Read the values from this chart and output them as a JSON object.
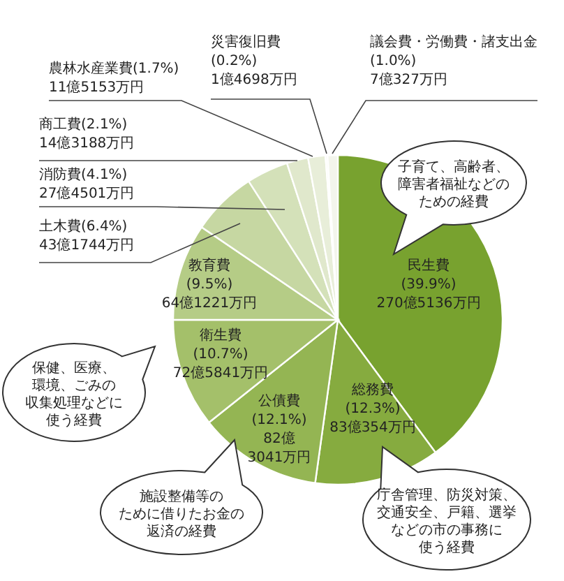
{
  "chart_data": {
    "type": "pie",
    "categories": [
      "民生費",
      "総務費",
      "公債費",
      "衛生費",
      "教育費",
      "土木費",
      "消防費",
      "商工費",
      "農林水産業費",
      "災害復旧費",
      "議会費・労働費・諸支出金"
    ],
    "values": [
      39.9,
      12.3,
      12.1,
      10.7,
      9.5,
      6.4,
      4.1,
      2.1,
      1.7,
      0.2,
      1.0
    ],
    "value_labels": [
      "(39.9%)\n270億5136万円",
      "(12.3%)\n83億354万円",
      "(12.1%)\n82億\n3041万円",
      "(10.7%)\n72億5841万円",
      "(9.5%)\n64億1221万円",
      "(6.4%)\n43億1744万円",
      "(4.1%)\n27億4501万円",
      "(2.1%)\n14億3188万円",
      "(1.7%)\n11億5153万円",
      "(0.2%)\n1億4698万円",
      "(1.0%)\n7億327万円"
    ],
    "colors": [
      "#78a22f",
      "#86ab3f",
      "#94b553",
      "#a4c06a",
      "#b5cc86",
      "#c6d7a2",
      "#d4e1b9",
      "#e0e8cc",
      "#e8eed9",
      "#eef2e4",
      "#f3f5ec"
    ],
    "annotations": [
      "子育て、高齢者、障害者福祉などのための経費",
      "保健、医療、環境、ごみの収集処理などに使う経費",
      "施設整備等のために借りたお金の返済の経費",
      "庁舎管理、防災対策、交通安全、戸籍、選挙などの市の事務に使う経費"
    ]
  }
}
